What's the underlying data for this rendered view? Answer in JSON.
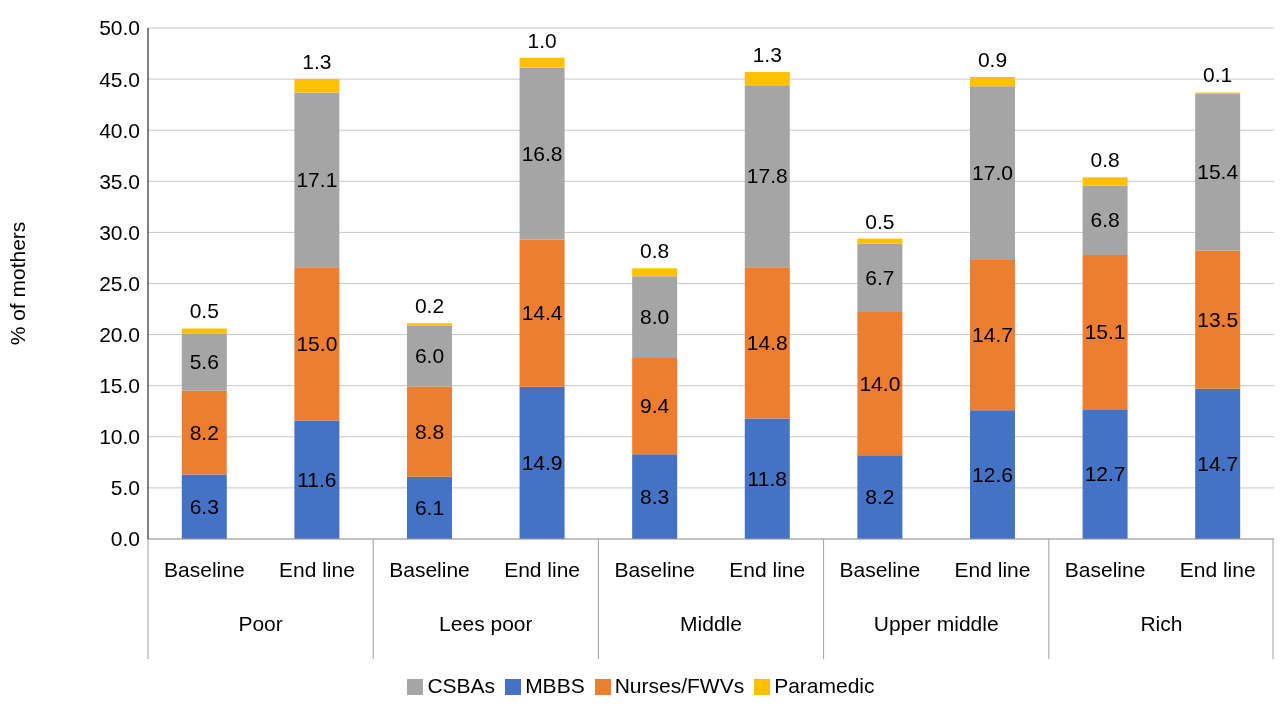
{
  "chart_data": {
    "type": "bar",
    "stacked": true,
    "ylabel": "% of mothers",
    "categories": [
      "Baseline",
      "End line",
      "Baseline",
      "End line",
      "Baseline",
      "End line",
      "Baseline",
      "End line",
      "Baseline",
      "End line"
    ],
    "annotations": [
      "Poor",
      "Lees poor",
      "Middle",
      "Upper middle",
      "Rich"
    ],
    "series": [
      {
        "name": "MBBS",
        "color": "#4472c4",
        "values": [
          6.3,
          11.6,
          6.1,
          14.9,
          8.3,
          11.8,
          8.2,
          12.6,
          12.7,
          14.7
        ],
        "value_labels": [
          "6.3",
          "11.6",
          "6.1",
          "14.9",
          "8.3",
          "11.8",
          "8.2",
          "12.6",
          "12.7",
          "14.7"
        ]
      },
      {
        "name": "Nurses/FWVs",
        "color": "#ed7d31",
        "values": [
          8.2,
          15.0,
          8.8,
          14.4,
          9.4,
          14.8,
          14.0,
          14.7,
          15.1,
          13.5
        ],
        "value_labels": [
          "8.2",
          "15.0",
          "8.8",
          "14.4",
          "9.4",
          "14.8",
          "14.0",
          "14.7",
          "15.1",
          "13.5"
        ]
      },
      {
        "name": "CSBAs",
        "color": "#a5a5a5",
        "values": [
          5.6,
          17.1,
          6.0,
          16.8,
          8.0,
          17.8,
          6.7,
          17.0,
          6.8,
          15.4
        ],
        "value_labels": [
          "5.6",
          "17.1",
          "6.0",
          "16.8",
          "8.0",
          "17.8",
          "6.7",
          "17.0",
          "6.8",
          "15.4"
        ]
      },
      {
        "name": "Paramedic",
        "color": "#ffc000",
        "values": [
          0.5,
          1.3,
          0.2,
          1.0,
          0.8,
          1.3,
          0.5,
          0.9,
          0.8,
          0.1
        ],
        "value_labels": [
          "0.5",
          "1.3",
          "0.2",
          "1.0",
          "0.8",
          "1.3",
          "0.5",
          "0.9",
          "0.8",
          "0.1"
        ]
      }
    ],
    "ylim": [
      0,
      50
    ],
    "yticks": [
      {
        "value": 0,
        "label": "0.0"
      },
      {
        "value": 5,
        "label": "5.0"
      },
      {
        "value": 10,
        "label": "10.0"
      },
      {
        "value": 15,
        "label": "15.0"
      },
      {
        "value": 20,
        "label": "20.0"
      },
      {
        "value": 25,
        "label": "25.0"
      },
      {
        "value": 30,
        "label": "30.0"
      },
      {
        "value": 35,
        "label": "35.0"
      },
      {
        "value": 40,
        "label": "40.0"
      },
      {
        "value": 45,
        "label": "45.0"
      },
      {
        "value": 50,
        "label": "50.0"
      }
    ],
    "grid": "y",
    "legend": "bottom"
  }
}
